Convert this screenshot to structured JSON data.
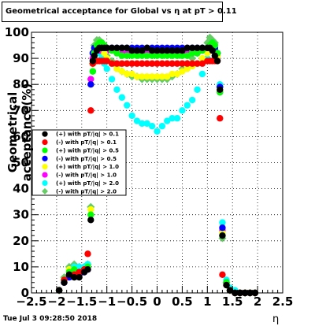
{
  "header": {
    "title": "Geometrical acceptance for Global vs  η at pT > 0.11"
  },
  "footer": {
    "timestamp": "Tue Jul  3 09:28:50 2018"
  },
  "chart_data": {
    "type": "scatter",
    "title": "Geometrical acceptance for Global vs  η at pT > 0.11",
    "xlabel": "η",
    "ylabel": "Geometrical acceptance(%)",
    "xlim": [
      -2.5,
      2.5
    ],
    "ylim": [
      0,
      100
    ],
    "x_ticks": [
      "−2.5",
      "−2",
      "−1.5",
      "−1",
      "−0.5",
      "0",
      "0.5",
      "1",
      "1.5",
      "2",
      "2.5"
    ],
    "y_ticks": [
      "0",
      "10",
      "20",
      "30",
      "40",
      "50",
      "60",
      "70",
      "80",
      "90",
      "100"
    ],
    "grid": true,
    "legend_position": "middle-left",
    "series": [
      {
        "name": "(+) with pT/|q| > 0.1",
        "color": "#000000",
        "marker": "circle",
        "x": [
          -1.95,
          -1.85,
          -1.75,
          -1.65,
          -1.55,
          -1.45,
          -1.38,
          -1.32,
          -1.28,
          -1.25,
          -1.2,
          -1.15,
          -1.1,
          -1.05,
          -1.0,
          -0.9,
          -0.8,
          -0.7,
          -0.6,
          -0.5,
          -0.4,
          -0.3,
          -0.2,
          -0.1,
          0.0,
          0.1,
          0.2,
          0.3,
          0.4,
          0.5,
          0.6,
          0.7,
          0.8,
          0.9,
          1.0,
          1.05,
          1.1,
          1.15,
          1.2,
          1.25,
          1.3,
          1.38,
          1.45,
          1.55,
          1.65,
          1.75,
          1.85,
          1.95
        ],
        "y": [
          1,
          4,
          7,
          6,
          6,
          8,
          9,
          28,
          89,
          91,
          93,
          94,
          94,
          94,
          94,
          94,
          94,
          94,
          94,
          93,
          93,
          93,
          94,
          93,
          93,
          93,
          93,
          93,
          93,
          93,
          94,
          94,
          94,
          94,
          94,
          94,
          93,
          91,
          89,
          78,
          22,
          3,
          1,
          0,
          0,
          0,
          0,
          0
        ]
      },
      {
        "name": "(-) with pT/|q| > 0.1",
        "color": "#ff0000",
        "marker": "circle",
        "x": [
          -1.95,
          -1.85,
          -1.75,
          -1.65,
          -1.55,
          -1.45,
          -1.38,
          -1.32,
          -1.28,
          -1.25,
          -1.2,
          -1.15,
          -1.1,
          -1.05,
          -1.0,
          -0.9,
          -0.8,
          -0.7,
          -0.6,
          -0.5,
          -0.4,
          -0.3,
          -0.2,
          -0.1,
          0.0,
          0.1,
          0.2,
          0.3,
          0.4,
          0.5,
          0.6,
          0.7,
          0.8,
          0.9,
          1.0,
          1.05,
          1.1,
          1.15,
          1.2,
          1.25,
          1.3,
          1.38,
          1.45,
          1.55,
          1.65,
          1.75,
          1.85,
          1.95
        ],
        "y": [
          1,
          5,
          7,
          7,
          8,
          9,
          15,
          70,
          88,
          89,
          89,
          89,
          89,
          89,
          89,
          88,
          88,
          88,
          88,
          88,
          88,
          88,
          88,
          88,
          88,
          88,
          88,
          88,
          88,
          88,
          88,
          88,
          88,
          88,
          89,
          89,
          89,
          89,
          89,
          67,
          7,
          3,
          1,
          0,
          0,
          0,
          0,
          0
        ]
      },
      {
        "name": "(+) with pT/|q| > 0.5",
        "color": "#00ff00",
        "marker": "circle",
        "x": [
          -1.95,
          -1.85,
          -1.75,
          -1.65,
          -1.55,
          -1.45,
          -1.38,
          -1.32,
          -1.28,
          -1.25,
          -1.2,
          -1.15,
          -1.1,
          -1.05,
          -1.0,
          -0.9,
          -0.8,
          -0.7,
          -0.6,
          -0.5,
          -0.4,
          -0.3,
          -0.2,
          -0.1,
          0.0,
          0.1,
          0.2,
          0.3,
          0.4,
          0.5,
          0.6,
          0.7,
          0.8,
          0.9,
          1.0,
          1.05,
          1.1,
          1.15,
          1.2,
          1.25,
          1.3,
          1.38,
          1.45,
          1.55,
          1.65,
          1.75,
          1.85,
          1.95
        ],
        "y": [
          1,
          5,
          8,
          9,
          8,
          9,
          10,
          30,
          85,
          92,
          95,
          96,
          96,
          95,
          94,
          93,
          92,
          91,
          91,
          91,
          91,
          91,
          91,
          91,
          91,
          91,
          91,
          91,
          91,
          91,
          91,
          92,
          92,
          93,
          94,
          95,
          96,
          95,
          92,
          77,
          22,
          4,
          1,
          0,
          0,
          0,
          0,
          0
        ]
      },
      {
        "name": "(-) with pT/|q| > 0.5",
        "color": "#0000ff",
        "marker": "circle",
        "x": [
          -1.95,
          -1.85,
          -1.75,
          -1.65,
          -1.55,
          -1.45,
          -1.38,
          -1.32,
          -1.28,
          -1.25,
          -1.2,
          -1.15,
          -1.1,
          -1.05,
          -1.0,
          -0.9,
          -0.8,
          -0.7,
          -0.6,
          -0.5,
          -0.4,
          -0.3,
          -0.2,
          -0.1,
          0.0,
          0.1,
          0.2,
          0.3,
          0.4,
          0.5,
          0.6,
          0.7,
          0.8,
          0.9,
          1.0,
          1.05,
          1.1,
          1.15,
          1.2,
          1.25,
          1.3,
          1.38,
          1.45,
          1.55,
          1.65,
          1.75,
          1.85,
          1.95
        ],
        "y": [
          1,
          4,
          6,
          7,
          7,
          8,
          9,
          80,
          92,
          94,
          94,
          94,
          94,
          94,
          94,
          94,
          94,
          94,
          94,
          94,
          94,
          94,
          94,
          94,
          94,
          94,
          94,
          94,
          94,
          94,
          94,
          94,
          94,
          94,
          94,
          94,
          94,
          94,
          92,
          79,
          25,
          4,
          1,
          0,
          0,
          0,
          0,
          0
        ]
      },
      {
        "name": "(+) with pT/|q| > 1.0",
        "color": "#ffff00",
        "marker": "circle",
        "x": [
          -1.95,
          -1.85,
          -1.75,
          -1.65,
          -1.55,
          -1.45,
          -1.38,
          -1.32,
          -1.28,
          -1.25,
          -1.2,
          -1.15,
          -1.1,
          -1.05,
          -1.0,
          -0.9,
          -0.8,
          -0.7,
          -0.6,
          -0.5,
          -0.4,
          -0.3,
          -0.2,
          -0.1,
          0.0,
          0.1,
          0.2,
          0.3,
          0.4,
          0.5,
          0.6,
          0.7,
          0.8,
          0.9,
          1.0,
          1.05,
          1.1,
          1.15,
          1.2,
          1.25,
          1.3,
          1.38,
          1.45,
          1.55,
          1.65,
          1.75,
          1.85,
          1.95
        ],
        "y": [
          1,
          5,
          9,
          9,
          8,
          9,
          10,
          32,
          88,
          93,
          95,
          96,
          94,
          92,
          90,
          88,
          86,
          85,
          84,
          84,
          83,
          83,
          83,
          83,
          83,
          83,
          83,
          84,
          84,
          85,
          86,
          87,
          88,
          90,
          92,
          94,
          95,
          94,
          91,
          78,
          23,
          4,
          1,
          0,
          0,
          0,
          0,
          0
        ]
      },
      {
        "name": "(-) with pT/|q| > 1.0",
        "color": "#ff00ff",
        "marker": "circle",
        "x": [
          -1.95,
          -1.85,
          -1.75,
          -1.65,
          -1.55,
          -1.45,
          -1.38,
          -1.32,
          -1.28,
          -1.25,
          -1.2,
          -1.15,
          -1.1,
          -1.05,
          -1.0,
          -0.9,
          -0.8,
          -0.7,
          -0.6,
          -0.5,
          -0.4,
          -0.3,
          -0.2,
          -0.1,
          0.0,
          0.1,
          0.2,
          0.3,
          0.4,
          0.5,
          0.6,
          0.7,
          0.8,
          0.9,
          1.0,
          1.05,
          1.1,
          1.15,
          1.2,
          1.25,
          1.3,
          1.38,
          1.45,
          1.55,
          1.65,
          1.75,
          1.85,
          1.95
        ],
        "y": [
          1,
          4,
          7,
          7,
          7,
          8,
          9,
          82,
          90,
          92,
          93,
          93,
          93,
          93,
          93,
          93,
          92,
          92,
          92,
          92,
          92,
          92,
          92,
          92,
          92,
          92,
          92,
          92,
          92,
          92,
          92,
          92,
          92,
          93,
          93,
          93,
          93,
          93,
          91,
          77,
          24,
          4,
          1,
          0,
          0,
          0,
          0,
          0
        ]
      },
      {
        "name": "(+) with pT/|q| > 2.0",
        "color": "#00ffff",
        "marker": "circle",
        "x": [
          -1.95,
          -1.85,
          -1.75,
          -1.65,
          -1.55,
          -1.45,
          -1.38,
          -1.32,
          -1.28,
          -1.25,
          -1.2,
          -1.15,
          -1.1,
          -1.05,
          -1.0,
          -0.9,
          -0.8,
          -0.7,
          -0.6,
          -0.5,
          -0.4,
          -0.3,
          -0.2,
          -0.1,
          0.0,
          0.1,
          0.2,
          0.3,
          0.4,
          0.5,
          0.6,
          0.7,
          0.8,
          0.9,
          1.0,
          1.05,
          1.1,
          1.15,
          1.2,
          1.25,
          1.3,
          1.38,
          1.45,
          1.55,
          1.65,
          1.75,
          1.85,
          1.95
        ],
        "y": [
          1,
          5,
          9,
          10,
          10,
          10,
          11,
          40,
          85,
          90,
          92,
          92,
          90,
          88,
          86,
          82,
          78,
          75,
          72,
          68,
          66,
          65,
          65,
          64,
          62,
          64,
          66,
          67,
          67,
          70,
          72,
          74,
          78,
          84,
          90,
          94,
          96,
          95,
          92,
          80,
          27,
          5,
          2,
          1,
          0,
          0,
          0,
          0
        ]
      },
      {
        "name": "(-) with pT/|q| > 2.0",
        "color": "#66cc66",
        "marker": "circle",
        "x": [
          -1.95,
          -1.85,
          -1.75,
          -1.65,
          -1.55,
          -1.45,
          -1.38,
          -1.32,
          -1.28,
          -1.25,
          -1.2,
          -1.15,
          -1.1,
          -1.05,
          -1.0,
          -0.9,
          -0.8,
          -0.7,
          -0.6,
          -0.5,
          -0.4,
          -0.3,
          -0.2,
          -0.1,
          0.0,
          0.1,
          0.2,
          0.3,
          0.4,
          0.5,
          0.6,
          0.7,
          0.8,
          0.9,
          1.0,
          1.05,
          1.1,
          1.15,
          1.2,
          1.25,
          1.3,
          1.38,
          1.45,
          1.55,
          1.65,
          1.75,
          1.85,
          1.95
        ],
        "y": [
          1,
          6,
          10,
          11,
          10,
          10,
          11,
          33,
          88,
          95,
          97,
          97,
          96,
          93,
          91,
          89,
          87,
          85,
          84,
          83,
          83,
          82,
          82,
          82,
          82,
          82,
          82,
          83,
          84,
          86,
          88,
          90,
          92,
          94,
          96,
          98,
          97,
          96,
          92,
          79,
          21,
          4,
          1,
          0,
          0,
          0,
          0,
          0
        ]
      }
    ]
  }
}
